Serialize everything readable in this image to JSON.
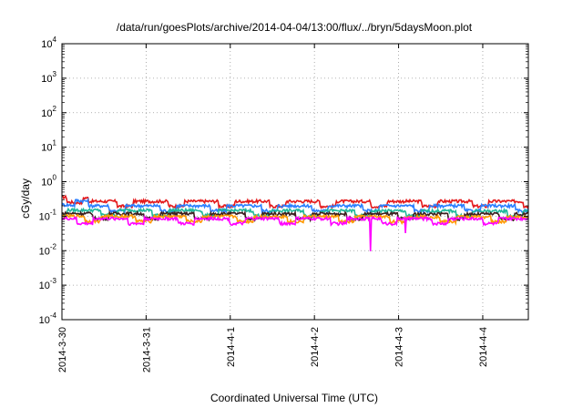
{
  "chart_data": {
    "type": "line",
    "title": "/data/run/goesPlots/archive/2014-04-04/13:00/flux/../bryn/5daysMoon.plot",
    "xlabel": "Coordinated Universal Time (UTC)",
    "ylabel": "cGy/day",
    "yscale": "log",
    "ylim": [
      0.0001,
      10000
    ],
    "y_ticks": [
      {
        "base": "10",
        "exp": "-4",
        "value": 0.0001
      },
      {
        "base": "10",
        "exp": "-3",
        "value": 0.001
      },
      {
        "base": "10",
        "exp": "-2",
        "value": 0.01
      },
      {
        "base": "10",
        "exp": "-1",
        "value": 0.1
      },
      {
        "base": "10",
        "exp": "0",
        "value": 1
      },
      {
        "base": "10",
        "exp": "1",
        "value": 10
      },
      {
        "base": "10",
        "exp": "2",
        "value": 100
      },
      {
        "base": "10",
        "exp": "3",
        "value": 1000
      },
      {
        "base": "10",
        "exp": "4",
        "value": 10000
      }
    ],
    "x_ticks": [
      "2014-3-30",
      "2014-3-31",
      "2014-4-1",
      "2014-4-2",
      "2014-4-3",
      "2014-4-4"
    ],
    "xlim": [
      "2014-03-30T00:00",
      "2014-04-04T13:00"
    ],
    "grid": true,
    "series": [
      {
        "color": "#e41a1c",
        "base": 0.27,
        "x": [
          "2014-03-30T00:00",
          "2014-03-31T00:00",
          "2014-04-01T00:00",
          "2014-04-02T00:00",
          "2014-04-02T16:00",
          "2014-04-03T00:00",
          "2014-04-04T00:00",
          "2014-04-04T13:00"
        ],
        "values": [
          0.36,
          0.26,
          0.26,
          0.26,
          0.26,
          0.26,
          0.26,
          0.26
        ]
      },
      {
        "color": "#2a7fff",
        "base": 0.2,
        "x": [
          "2014-03-30T00:00",
          "2014-03-31T00:00",
          "2014-04-01T00:00",
          "2014-04-02T00:00",
          "2014-04-02T16:00",
          "2014-04-03T00:00",
          "2014-04-04T00:00",
          "2014-04-04T13:00"
        ],
        "values": [
          0.3,
          0.2,
          0.2,
          0.2,
          0.2,
          0.2,
          0.2,
          0.2
        ]
      },
      {
        "color": "#1fb89a",
        "base": 0.15,
        "x": [
          "2014-03-30T00:00",
          "2014-04-04T13:00"
        ],
        "values": [
          0.15,
          0.14
        ]
      },
      {
        "color": "#3b1f1f",
        "base": 0.12,
        "x": [
          "2014-03-30T00:00",
          "2014-04-04T13:00"
        ],
        "values": [
          0.12,
          0.115
        ]
      },
      {
        "color": "#ff9900",
        "base": 0.1,
        "x": [
          "2014-03-30T00:00",
          "2014-04-04T13:00"
        ],
        "values": [
          0.1,
          0.095
        ]
      },
      {
        "color": "#ff00ff",
        "base": 0.085,
        "x": [
          "2014-03-30T00:00",
          "2014-04-02T16:00",
          "2014-04-03T02:00",
          "2014-04-04T13:00"
        ],
        "values": [
          0.085,
          0.009,
          0.03,
          0.08
        ]
      }
    ]
  }
}
